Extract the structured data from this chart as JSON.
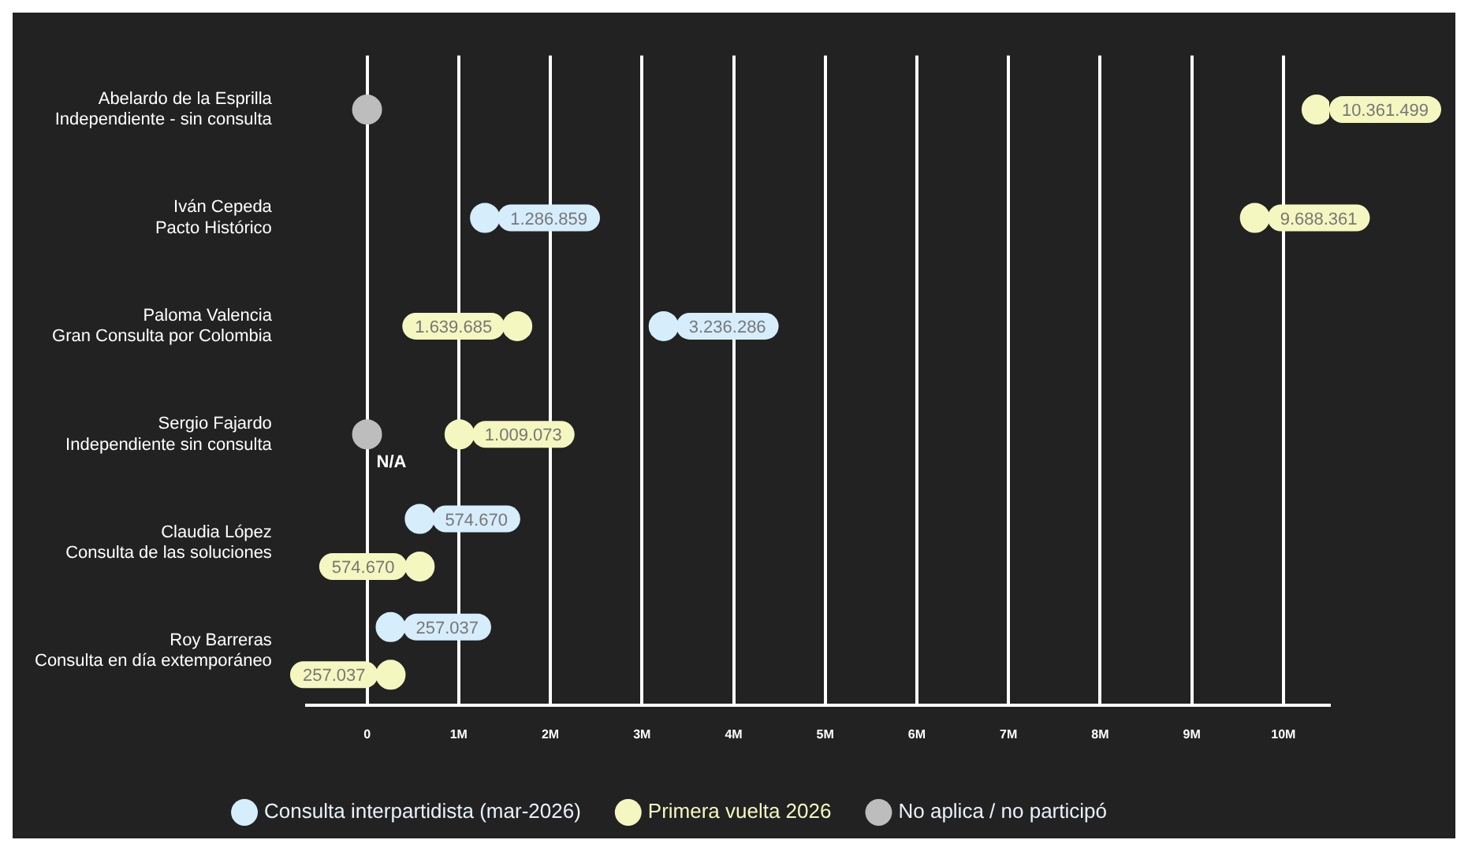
{
  "chart_data": {
    "type": "scatter",
    "orientation": "horizontal",
    "categories": [
      "Abelardo de la Esprilla\nIndependiente - sin consulta",
      "Iván Cepeda\nPacto Histórico",
      "Paloma Valencia\nGran Consulta por Colombia",
      "Sergio Fajardo\nIndependiente sin consulta",
      "Claudia López\nConsulta de las soluciones",
      "Roy Barreras\nConsulta en día extemporáneo"
    ],
    "series": [
      {
        "name": "Consulta interpartidista (mar-2026)",
        "color": "#d6edfc",
        "values": [
          null,
          1286859,
          3236286,
          null,
          574670,
          257037
        ],
        "value_labels": [
          null,
          "1.286.859",
          "3.236.286",
          null,
          "574.670",
          "257.037"
        ]
      },
      {
        "name": "Primera vuelta 2026",
        "color": "#f5f7c0",
        "values": [
          10361499,
          9688361,
          1639685,
          1009073,
          574670,
          257037
        ],
        "value_labels": [
          "10.361.499",
          "9.688.361",
          "1.639.685",
          "1.009.073",
          "574.670",
          "257.037"
        ]
      },
      {
        "name": "No aplica / no participó",
        "color": "#bdbdbd",
        "values": [
          0,
          null,
          null,
          0,
          null,
          null
        ]
      }
    ],
    "xlim": [
      -660000,
      10500000
    ],
    "xticks": [
      0,
      {
        "value": 1000000,
        "label": "1M"
      },
      {
        "value": 2000000,
        "label": "2M"
      },
      {
        "value": 3000000,
        "label": "3M"
      },
      {
        "value": 4000000,
        "label": "4M"
      },
      {
        "value": 5000000,
        "label": "5M"
      },
      {
        "value": 6000000,
        "label": "6M"
      },
      {
        "value": 7000000,
        "label": "7M"
      },
      {
        "value": 8000000,
        "label": "8M"
      },
      {
        "value": 9000000,
        "label": "9M"
      },
      {
        "value": 10000000,
        "label": "10M"
      }
    ],
    "grid": "x",
    "legend": "bottom",
    "marker": "circle",
    "annotations": [
      {
        "text": "N/A",
        "x": 0,
        "y": "Sergio Fajardo\nIndependiente sin consulta"
      }
    ]
  }
}
